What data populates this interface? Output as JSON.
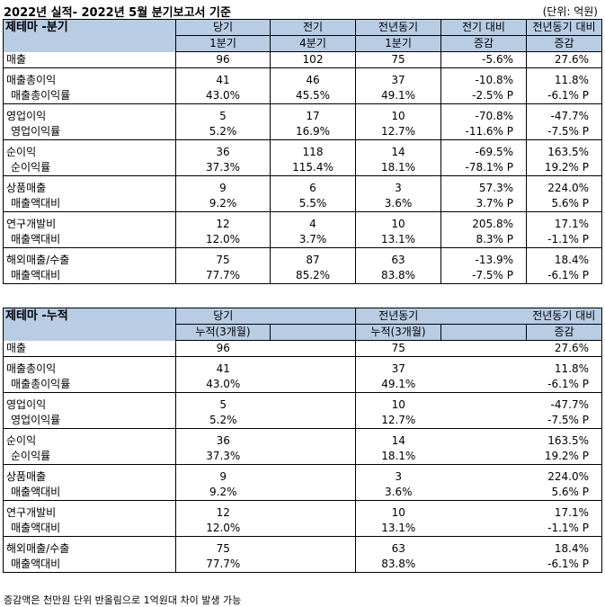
{
  "title": "2022년 실적- 2022년 5월 분기보고서 기준",
  "unit": "(단위: 억원)",
  "quarter": {
    "header_label": "제테마 -분기",
    "columns": [
      {
        "line1": "당기",
        "line2": "1분기"
      },
      {
        "line1": "전기",
        "line2": "4분기"
      },
      {
        "line1": "전년동기",
        "line2": "1분기"
      },
      {
        "line1": "전기 대비",
        "line2": "증감"
      },
      {
        "line1": "전년동기 대비",
        "line2": "증감"
      }
    ],
    "groups": [
      {
        "rows": [
          {
            "label": "매출",
            "values": [
              "96",
              "102",
              "75",
              "-5.6%",
              "27.6%"
            ]
          }
        ]
      },
      {
        "rows": [
          {
            "label": "매출총이익",
            "values": [
              "41",
              "46",
              "37",
              "-10.8%",
              "11.8%"
            ]
          },
          {
            "label": "매출총이익률",
            "values": [
              "43.0%",
              "45.5%",
              "49.1%",
              "-2.5% P",
              "-6.1% P"
            ]
          }
        ]
      },
      {
        "rows": [
          {
            "label": "영업이익",
            "values": [
              "5",
              "17",
              "10",
              "-70.8%",
              "-47.7%"
            ]
          },
          {
            "label": "영업이익률",
            "values": [
              "5.2%",
              "16.9%",
              "12.7%",
              "-11.6% P",
              "-7.5% P"
            ]
          }
        ]
      },
      {
        "rows": [
          {
            "label": "순이익",
            "values": [
              "36",
              "118",
              "14",
              "-69.5%",
              "163.5%"
            ]
          },
          {
            "label": "순이익률",
            "values": [
              "37.3%",
              "115.4%",
              "18.1%",
              "-78.1% P",
              "19.2% P"
            ]
          }
        ]
      },
      {
        "rows": [
          {
            "label": "상품매출",
            "values": [
              "9",
              "6",
              "3",
              "57.3%",
              "224.0%"
            ]
          },
          {
            "label": "매출액대비",
            "values": [
              "9.2%",
              "5.5%",
              "3.6%",
              "3.7% P",
              "5.6% P"
            ]
          }
        ]
      },
      {
        "rows": [
          {
            "label": "연구개발비",
            "values": [
              "12",
              "4",
              "10",
              "205.8%",
              "17.1%"
            ]
          },
          {
            "label": "매출액대비",
            "values": [
              "12.0%",
              "3.7%",
              "13.1%",
              "8.3% P",
              "-1.1% P"
            ]
          }
        ]
      },
      {
        "rows": [
          {
            "label": "해외매출/수출",
            "values": [
              "75",
              "87",
              "63",
              "-13.9%",
              "18.4%"
            ]
          },
          {
            "label": "매출액대비",
            "values": [
              "77.7%",
              "85.2%",
              "83.8%",
              "-7.5% P",
              "-6.1% P"
            ]
          }
        ]
      }
    ]
  },
  "cumulative": {
    "header_label": "제테마 -누적",
    "columns": [
      {
        "line1": "당기",
        "line2": "누적(3개월)"
      },
      {
        "line1": "전년동기",
        "line2": "누적(3개월)"
      },
      {
        "line1": "전년동기 대비",
        "line2": "증감"
      }
    ],
    "groups": [
      {
        "rows": [
          {
            "label": "매출",
            "values": [
              "96",
              "75",
              "27.6%"
            ]
          }
        ]
      },
      {
        "rows": [
          {
            "label": "매출총이익",
            "values": [
              "41",
              "37",
              "11.8%"
            ]
          },
          {
            "label": "매출총이익률",
            "values": [
              "43.0%",
              "49.1%",
              "-6.1% P"
            ]
          }
        ]
      },
      {
        "rows": [
          {
            "label": "영업이익",
            "values": [
              "5",
              "10",
              "-47.7%"
            ]
          },
          {
            "label": "영업이익률",
            "values": [
              "5.2%",
              "12.7%",
              "-7.5% P"
            ]
          }
        ]
      },
      {
        "rows": [
          {
            "label": "순이익",
            "values": [
              "36",
              "14",
              "163.5%"
            ]
          },
          {
            "label": "순이익률",
            "values": [
              "37.3%",
              "18.1%",
              "19.2% P"
            ]
          }
        ]
      },
      {
        "rows": [
          {
            "label": "상품매출",
            "values": [
              "9",
              "3",
              "224.0%"
            ]
          },
          {
            "label": "매출액대비",
            "values": [
              "9.2%",
              "3.6%",
              "5.6% P"
            ]
          }
        ]
      },
      {
        "rows": [
          {
            "label": "연구개발비",
            "values": [
              "12",
              "10",
              "17.1%"
            ]
          },
          {
            "label": "매출액대비",
            "values": [
              "12.0%",
              "13.1%",
              "-1.1% P"
            ]
          }
        ]
      },
      {
        "rows": [
          {
            "label": "해외매출/수출",
            "values": [
              "75",
              "63",
              "18.4%"
            ]
          },
          {
            "label": "매출액대비",
            "values": [
              "77.7%",
              "83.8%",
              "-6.1% P"
            ]
          }
        ]
      }
    ]
  },
  "note": "증감액은 천만원 단위 반올림으로 1억원대 차이 발생 가능"
}
